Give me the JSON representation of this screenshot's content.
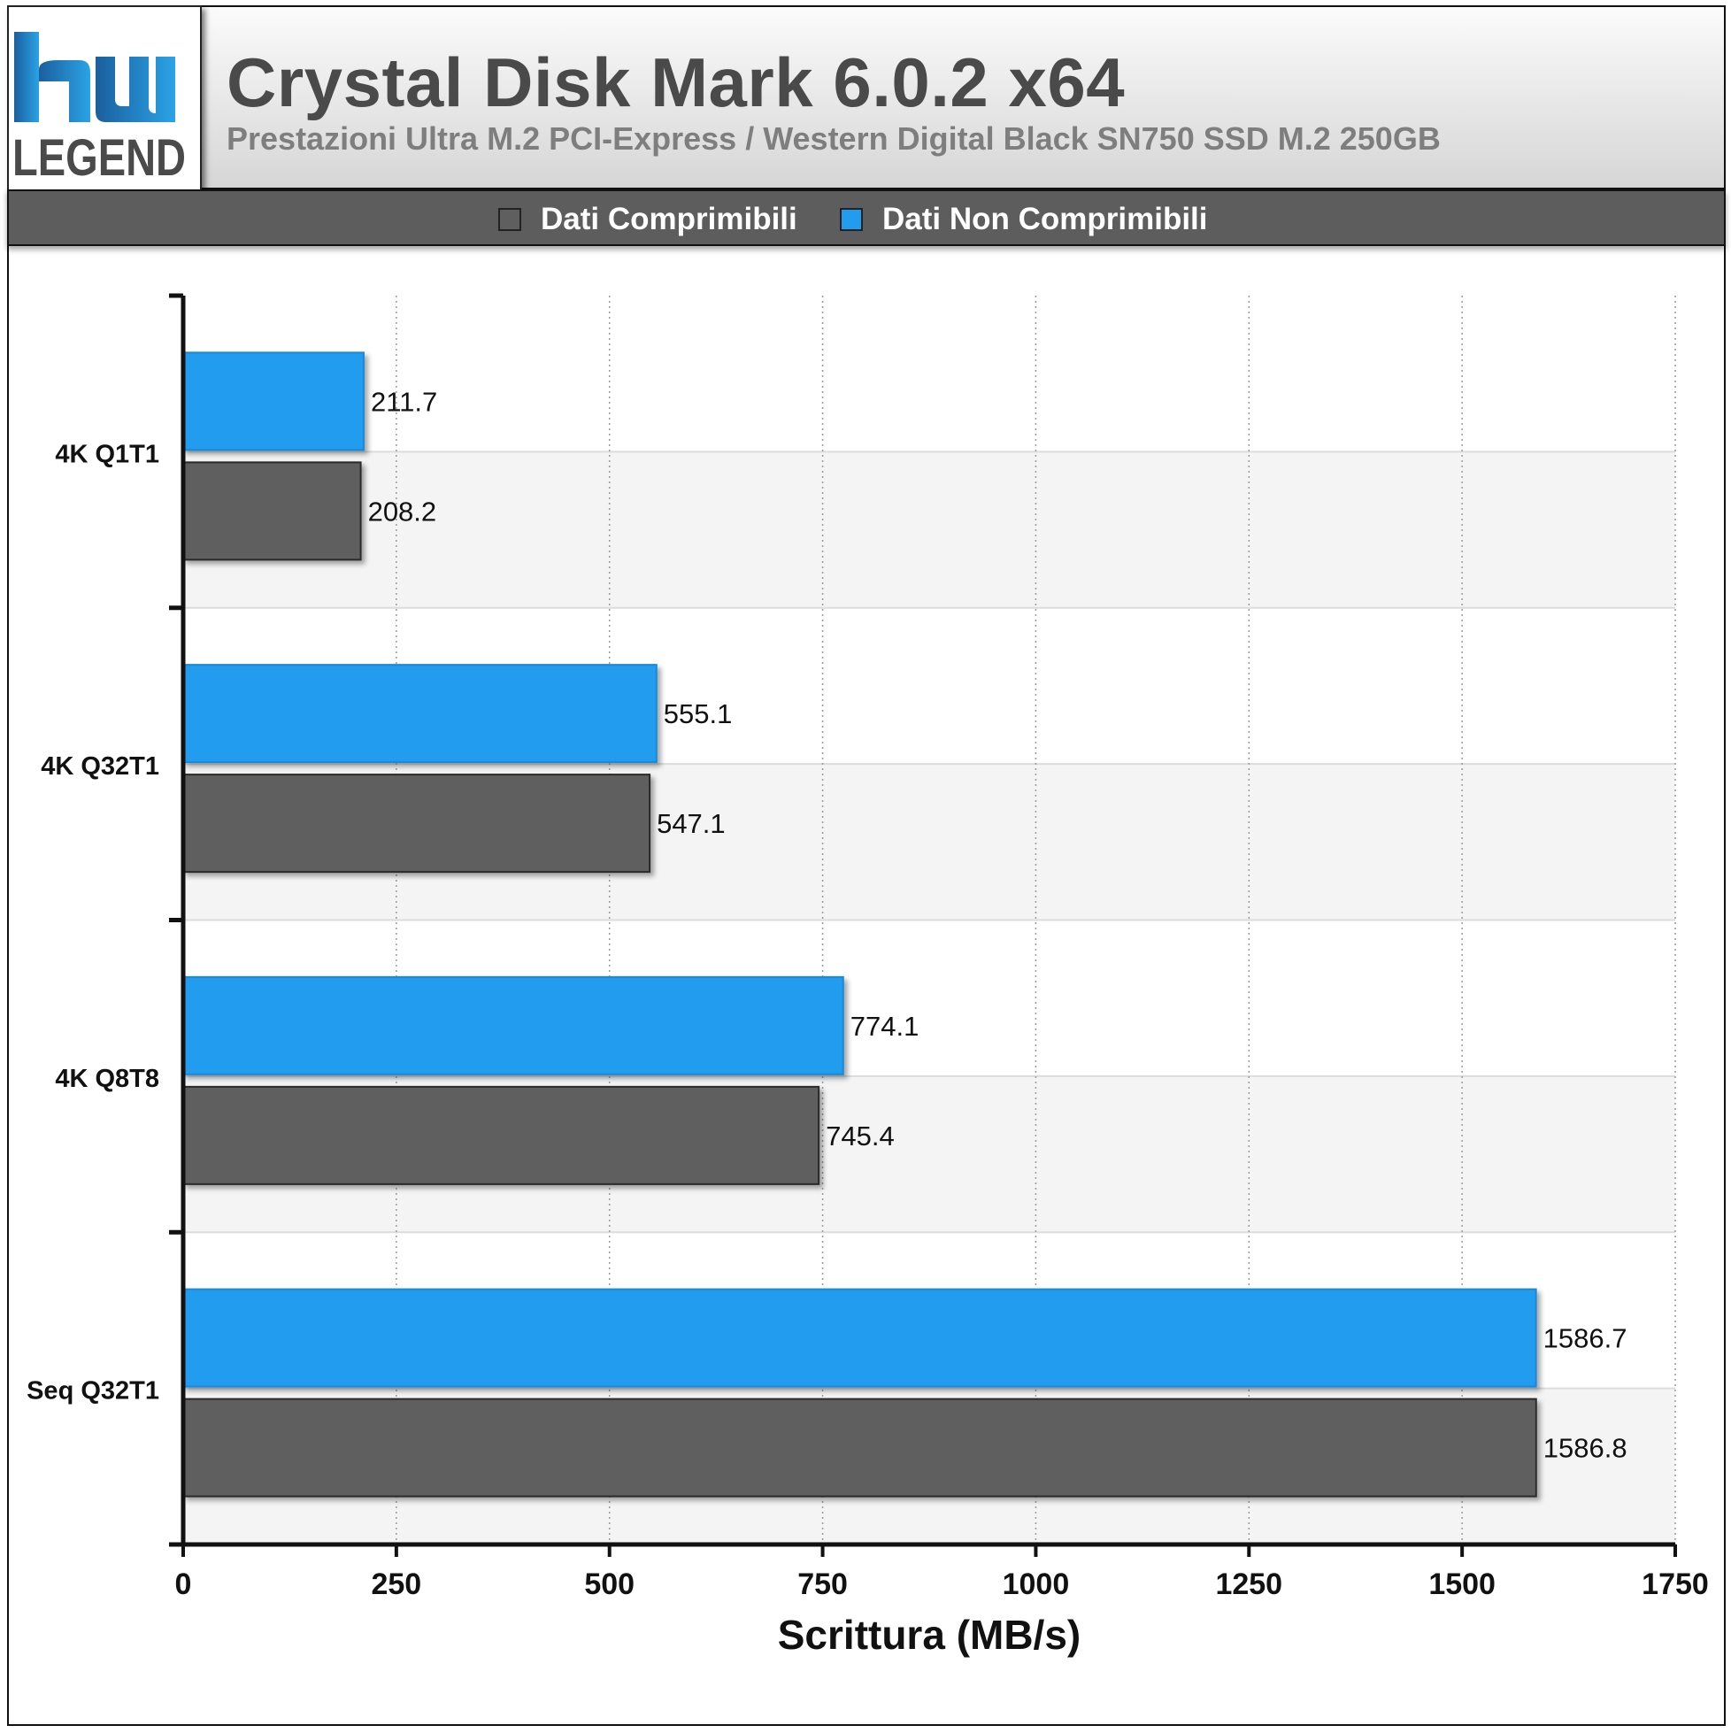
{
  "header": {
    "logo_text": "LEGEND",
    "title": "Crystal Disk Mark 6.0.2 x64",
    "subtitle": "Prestazioni Ultra M.2 PCI-Express / Western Digital Black SN750 SSD M.2 250GB"
  },
  "legend": [
    {
      "label": "Dati Comprimibili",
      "color": "#5f5f5f"
    },
    {
      "label": "Dati Non Comprimibili",
      "color": "#219cee"
    }
  ],
  "chart_data": {
    "type": "bar",
    "orientation": "horizontal",
    "title": "Crystal Disk Mark 6.0.2 x64",
    "subtitle": "Prestazioni Ultra M.2 PCI-Express / Western Digital Black SN750 SSD M.2 250GB",
    "categories": [
      "4K Q1T1",
      "4K Q32T1",
      "4K Q8T8",
      "Seq Q32T1"
    ],
    "series": [
      {
        "name": "Dati Non Comprimibili",
        "color": "#219cee",
        "values": [
          211.7,
          555.1,
          774.1,
          1586.7
        ]
      },
      {
        "name": "Dati Comprimibili",
        "color": "#5f5f5f",
        "values": [
          208.2,
          547.1,
          745.4,
          1586.8
        ]
      }
    ],
    "xlabel": "Scrittura (MB/s)",
    "ylabel": "",
    "xlim": [
      0,
      1750
    ],
    "xticks": [
      0,
      250,
      500,
      750,
      1000,
      1250,
      1500,
      1750
    ],
    "grid": "vertical dotted",
    "legend_position": "top"
  }
}
